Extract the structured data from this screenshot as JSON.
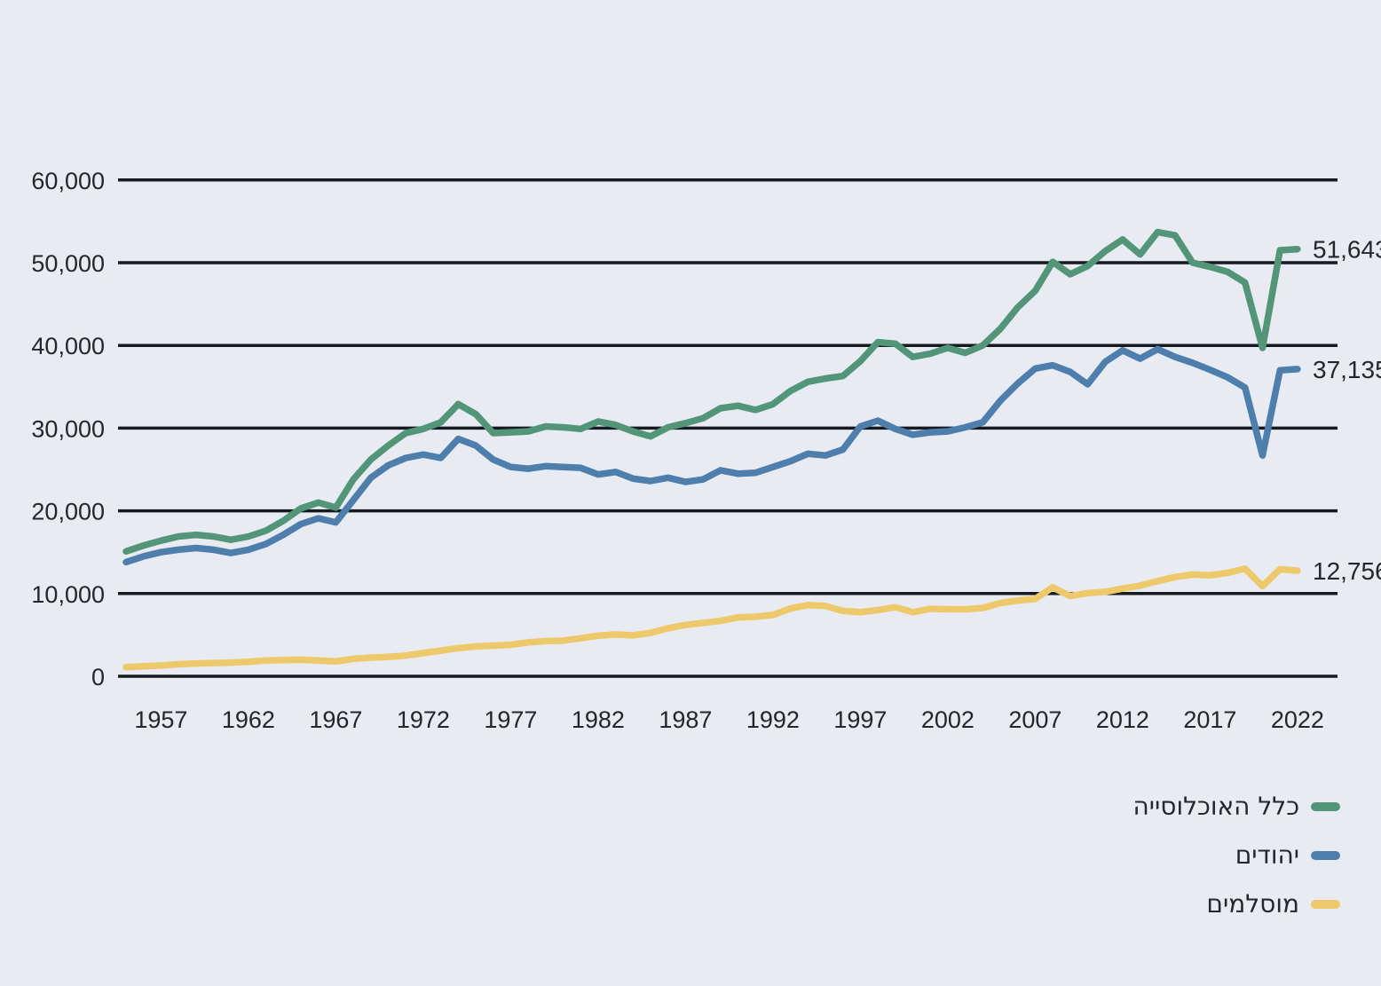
{
  "page": {
    "background": "#E8ECF2",
    "grid_color": "#16191F",
    "text_color": "#23262D"
  },
  "chart_data": {
    "type": "line",
    "title": "",
    "x_start_year": 1955,
    "x_end_year": 2022,
    "x_tick_years": [
      1957,
      1962,
      1967,
      1972,
      1977,
      1982,
      1987,
      1992,
      1997,
      2002,
      2007,
      2012,
      2017,
      2022
    ],
    "ylim": [
      0,
      60000
    ],
    "y_tick_step": 10000,
    "y_tick_labels": [
      "0",
      "10,000",
      "20,000",
      "30,000",
      "40,000",
      "50,000",
      "60,000"
    ],
    "grid": "horizontal",
    "legend_position": "bottom-right",
    "series": [
      {
        "name": "כלל האוכלוסייה",
        "color": "#529579",
        "end_label": "51,643",
        "end_value": 51643,
        "values": [
          15100,
          15800,
          16400,
          16900,
          17100,
          16900,
          16500,
          16900,
          17600,
          18800,
          20300,
          21000,
          20400,
          23800,
          26200,
          27900,
          29400,
          29900,
          30700,
          32900,
          31700,
          29400,
          29500,
          29600,
          30200,
          30100,
          29900,
          30800,
          30400,
          29600,
          29000,
          30100,
          30600,
          31200,
          32400,
          32700,
          32200,
          32900,
          34500,
          35600,
          36000,
          36300,
          38100,
          40400,
          40200,
          38600,
          39000,
          39700,
          39100,
          40000,
          42000,
          44600,
          46600,
          50100,
          48600,
          49600,
          51400,
          52800,
          51000,
          53700,
          53300,
          50000,
          49500,
          48900,
          47600,
          39700,
          51500,
          51643
        ]
      },
      {
        "name": "יהודים",
        "color": "#4E7EAC",
        "end_label": "37,135",
        "end_value": 37135,
        "values": [
          13800,
          14500,
          15000,
          15300,
          15500,
          15300,
          14900,
          15300,
          16000,
          17100,
          18400,
          19100,
          18600,
          21300,
          24000,
          25500,
          26400,
          26800,
          26400,
          28700,
          27900,
          26200,
          25300,
          25100,
          25400,
          25300,
          25200,
          24400,
          24700,
          23900,
          23600,
          24000,
          23500,
          23800,
          24900,
          24500,
          24600,
          25300,
          26000,
          26900,
          26700,
          27400,
          30200,
          30900,
          29900,
          29200,
          29500,
          29600,
          30100,
          30700,
          33300,
          35400,
          37200,
          37600,
          36800,
          35300,
          38000,
          39400,
          38400,
          39550,
          38600,
          37900,
          37050,
          36150,
          34900,
          26700,
          37000,
          37135
        ]
      },
      {
        "name": "מוסלמים",
        "color": "#EDC96C",
        "end_label": "12,756",
        "end_value": 12756,
        "values": [
          1100,
          1200,
          1300,
          1450,
          1550,
          1600,
          1650,
          1750,
          1900,
          1950,
          2000,
          1900,
          1800,
          2100,
          2250,
          2350,
          2500,
          2800,
          3100,
          3400,
          3600,
          3700,
          3800,
          4100,
          4250,
          4300,
          4600,
          4900,
          5050,
          4950,
          5250,
          5800,
          6200,
          6450,
          6700,
          7100,
          7200,
          7400,
          8200,
          8600,
          8500,
          7900,
          7750,
          8000,
          8350,
          7750,
          8150,
          8100,
          8100,
          8250,
          8850,
          9150,
          9350,
          10750,
          9700,
          10050,
          10200,
          10600,
          10950,
          11500,
          12000,
          12300,
          12200,
          12500,
          13000,
          10900,
          12950,
          12756
        ]
      }
    ]
  }
}
